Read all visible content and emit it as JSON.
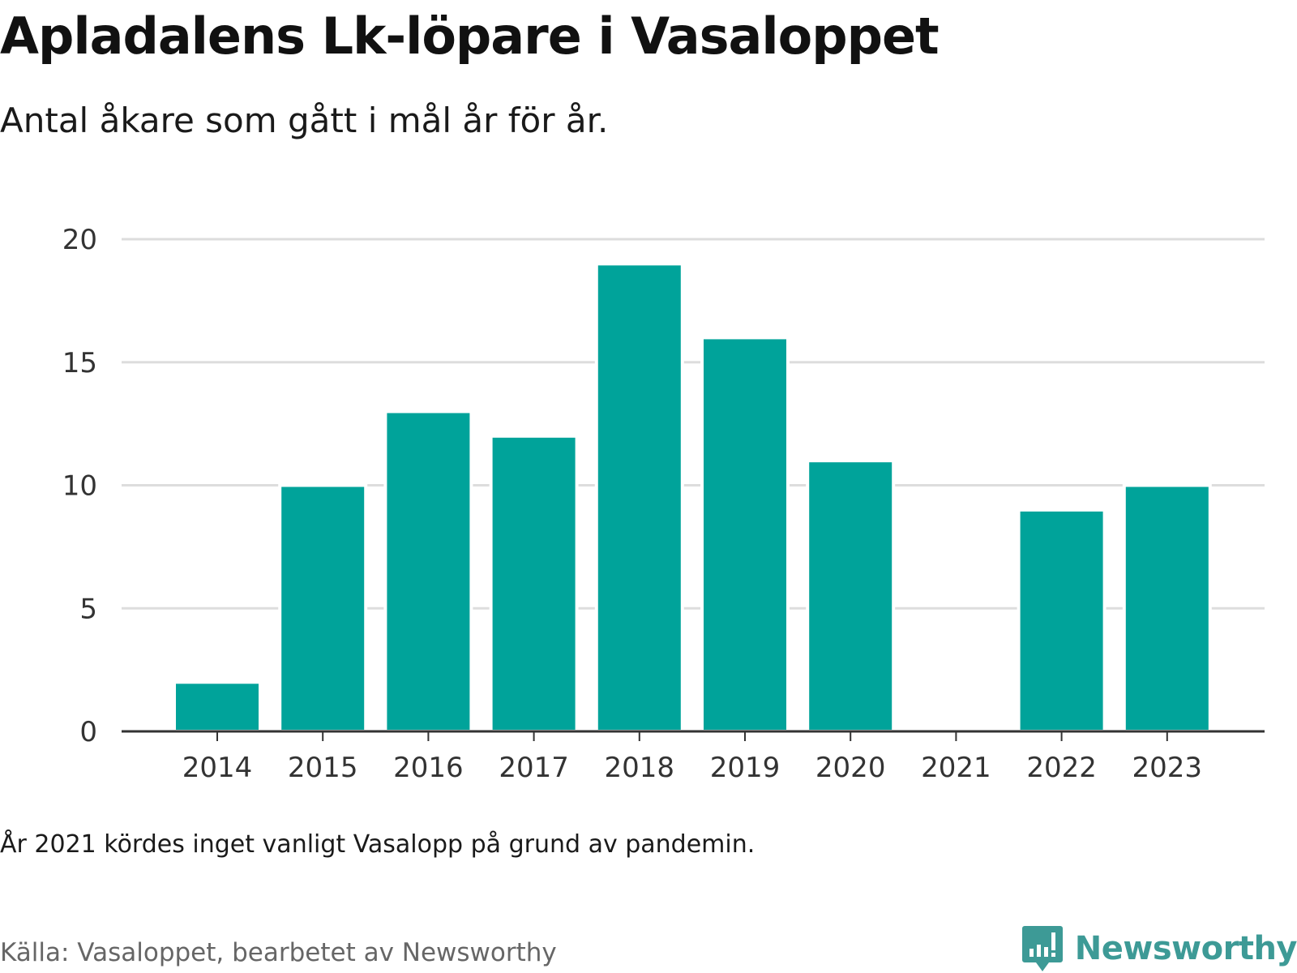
{
  "header": {
    "title": "Apladalens Lk-löpare i Vasaloppet",
    "subtitle": "Antal åkare som gått i mål år för år."
  },
  "footer": {
    "note": "År 2021 kördes inget vanligt Vasalopp på grund av pandemin.",
    "source": "Källa: Vasaloppet, bearbetet av Newsworthy",
    "brand": "Newsworthy"
  },
  "colors": {
    "bar": "#00a39a",
    "grid": "#dddddd",
    "axis": "#333333",
    "brand": "#3d9a96"
  },
  "chart_data": {
    "type": "bar",
    "title": "Apladalens Lk-löpare i Vasaloppet",
    "subtitle": "Antal åkare som gått i mål år för år.",
    "categories": [
      "2014",
      "2015",
      "2016",
      "2017",
      "2018",
      "2019",
      "2020",
      "2021",
      "2022",
      "2023"
    ],
    "values": [
      2,
      10,
      13,
      12,
      19,
      16,
      11,
      0,
      9,
      10
    ],
    "ylim": [
      0,
      20
    ],
    "yticks": [
      0,
      5,
      10,
      15,
      20
    ],
    "grid": true,
    "xlabel": "",
    "ylabel": ""
  }
}
